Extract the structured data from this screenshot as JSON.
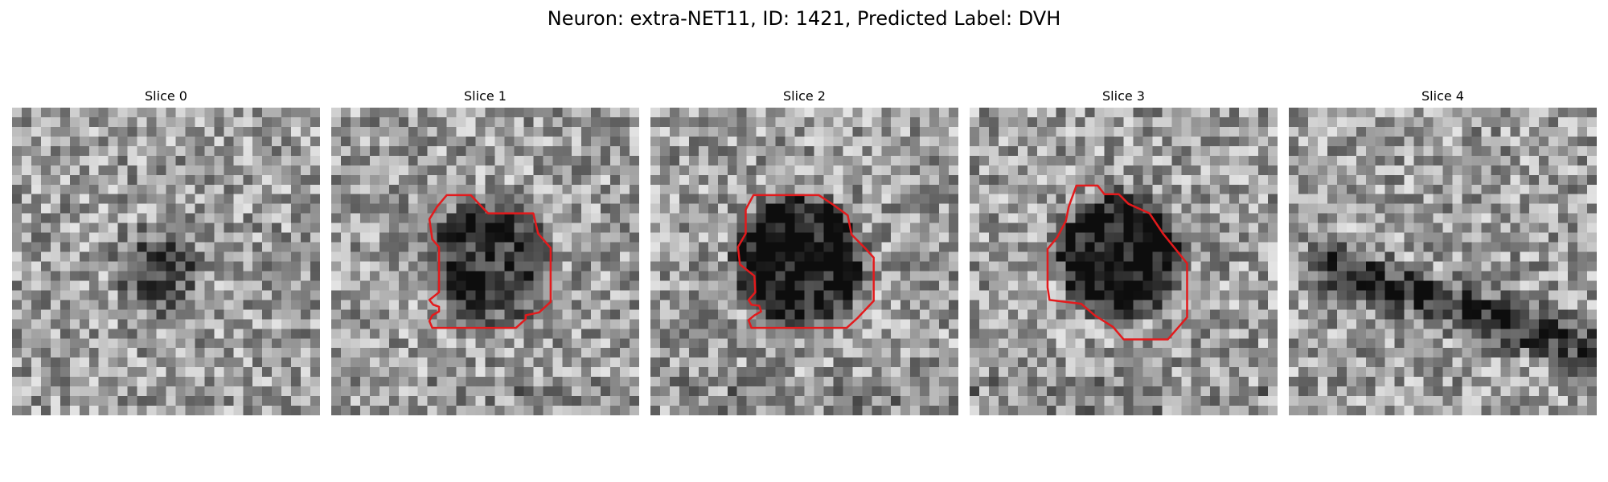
{
  "figure": {
    "title": "Neuron: extra-NET11, ID: 1421, Predicted Label: DVH"
  },
  "panels": [
    {
      "title": "Slice 0",
      "has_outline": false,
      "dark_blob": "round-center"
    },
    {
      "title": "Slice 1",
      "has_outline": true,
      "dark_blob": "round-center"
    },
    {
      "title": "Slice 2",
      "has_outline": true,
      "dark_blob": "round-center"
    },
    {
      "title": "Slice 3",
      "has_outline": true,
      "dark_blob": "round-center"
    },
    {
      "title": "Slice 4",
      "has_outline": false,
      "dark_blob": "diagonal-band"
    }
  ],
  "colors": {
    "outline": "#e31a1c",
    "background": "#ffffff",
    "colormap": "gray"
  }
}
